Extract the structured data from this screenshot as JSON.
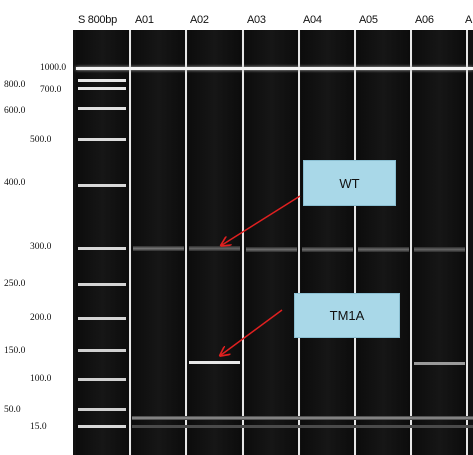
{
  "lanes": {
    "headers": [
      "S 800bp",
      "A01",
      "A02",
      "A03",
      "A04",
      "A05",
      "A06",
      "A"
    ]
  },
  "ladder": {
    "labels": [
      "1000.0",
      "800.0",
      "700.0",
      "600.0",
      "500.0",
      "400.0",
      "300.0",
      "250.0",
      "200.0",
      "150.0",
      "100.0",
      "50.0",
      "15.0"
    ]
  },
  "annotations": {
    "wt": "WT",
    "tm1a": "TM1A"
  },
  "colors": {
    "gel_background": "#111111",
    "band": "#ffffff",
    "callout_fill": "#a9d8e8",
    "arrow": "#e02020"
  }
}
